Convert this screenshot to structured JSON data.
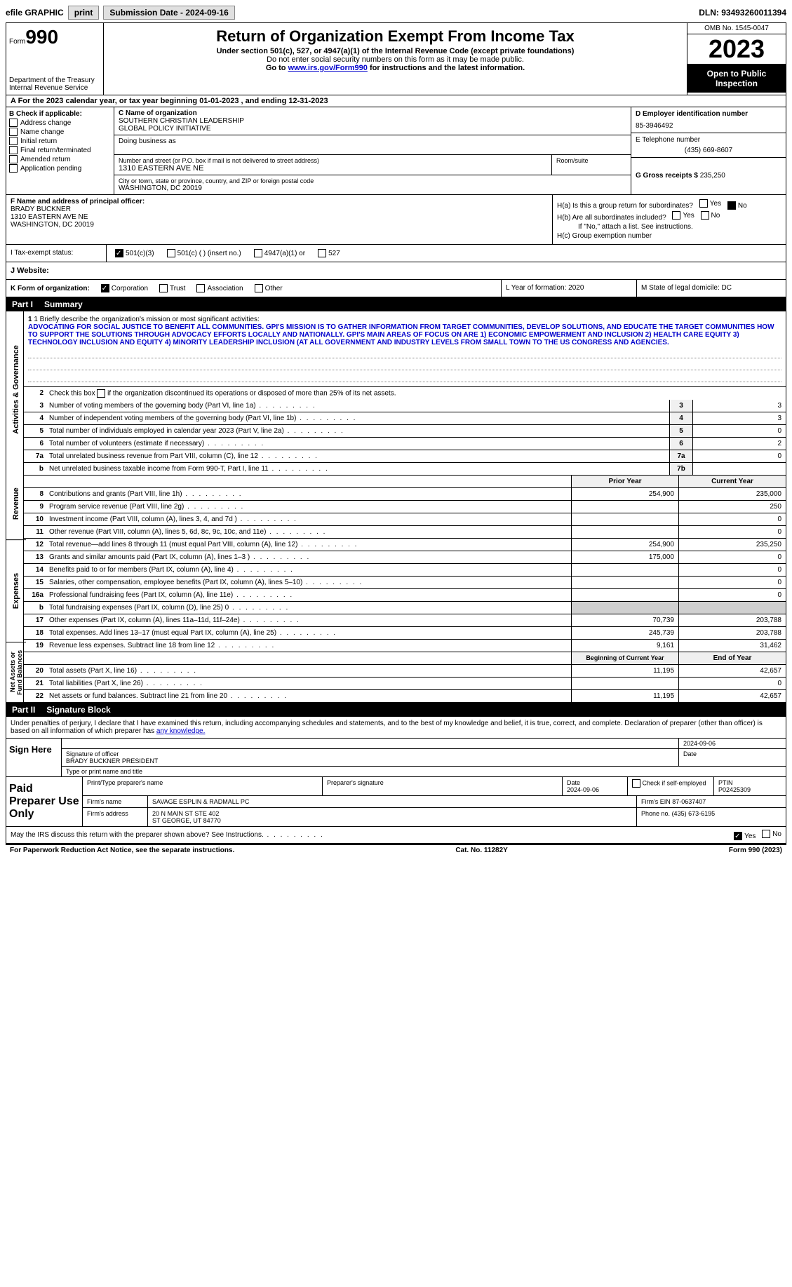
{
  "topbar": {
    "efile": "efile GRAPHIC",
    "print": "print",
    "submission_label": "Submission Date - 2024-09-16",
    "dln_label": "DLN: 93493260011394"
  },
  "header": {
    "form_prefix": "Form",
    "form_no": "990",
    "dept": "Department of the Treasury\nInternal Revenue Service",
    "title": "Return of Organization Exempt From Income Tax",
    "subtitle": "Under section 501(c), 527, or 4947(a)(1) of the Internal Revenue Code (except private foundations)",
    "ssn_note": "Do not enter social security numbers on this form as it may be made public.",
    "goto_prefix": "Go to ",
    "goto_link": "www.irs.gov/Form990",
    "goto_suffix": " for instructions and the latest information.",
    "omb": "OMB No. 1545-0047",
    "year": "2023",
    "open": "Open to Public Inspection"
  },
  "row_a": {
    "text": "A For the 2023 calendar year, or tax year beginning 01-01-2023   , and ending 12-31-2023"
  },
  "section_b": {
    "label": "B Check if applicable:",
    "opts": [
      "Address change",
      "Name change",
      "Initial return",
      "Final return/terminated",
      "Amended return",
      "Application pending"
    ],
    "c_name_label": "C Name of organization",
    "org_name": "SOUTHERN CHRISTIAN LEADERSHIP\nGLOBAL POLICY INITIATIVE",
    "dba_label": "Doing business as",
    "addr_label": "Number and street (or P.O. box if mail is not delivered to street address)",
    "addr": "1310 EASTERN AVE NE",
    "room_label": "Room/suite",
    "city_label": "City or town, state or province, country, and ZIP or foreign postal code",
    "city": "WASHINGTON, DC  20019",
    "d_label": "D Employer identification number",
    "ein": "85-3946492",
    "e_label": "E Telephone number",
    "phone": "(435) 669-8607",
    "g_label": "G Gross receipts $",
    "g_val": "235,250"
  },
  "section_f": {
    "label": "F Name and address of principal officer:",
    "name": "BRADY BUCKNER",
    "addr1": "1310 EASTERN AVE NE",
    "addr2": "WASHINGTON, DC  20019"
  },
  "section_h": {
    "ha": "H(a)  Is this a group return for subordinates?",
    "hb": "H(b)  Are all subordinates included?",
    "hb_note": "If \"No,\" attach a list. See instructions.",
    "hc": "H(c)  Group exemption number",
    "yes": "Yes",
    "no": "No"
  },
  "tax_status": {
    "i_label": "I  Tax-exempt status:",
    "opt1": "501(c)(3)",
    "opt2": "501(c) (  ) (insert no.)",
    "opt3": "4947(a)(1) or",
    "opt4": "527"
  },
  "j_label": "J  Website:",
  "k_row": {
    "label": "K Form of organization:",
    "opts": [
      "Corporation",
      "Trust",
      "Association",
      "Other"
    ],
    "l_label": "L Year of formation: 2020",
    "m_label": "M State of legal domicile: DC"
  },
  "part1": {
    "header": "Part I",
    "title": "Summary",
    "side_activities": "Activities & Governance",
    "side_revenue": "Revenue",
    "side_expenses": "Expenses",
    "side_net": "Net Assets or Fund Balances",
    "line1_label": "1  Briefly describe the organization's mission or most significant activities:",
    "mission": "ADVOCATING FOR SOCIAL JUSTICE TO BENEFIT ALL COMMUNITIES. GPI'S MISSION IS TO GATHER INFORMATION FROM TARGET COMMUNITIES, DEVELOP SOLUTIONS, AND EDUCATE THE TARGET COMMUNITIES HOW TO SUPPORT THE SOLUTIONS THROUGH ADVOCACY EFFORTS LOCALLY AND NATIONALLY. GPI'S MAIN AREAS OF FOCUS ON ARE 1) ECONOMIC EMPOWERMENT AND INCLUSION 2) HEALTH CARE EQUITY 3) TECHNOLOGY INCLUSION AND EQUITY 4) MINORITY LEADERSHIP INCLUSION (AT ALL GOVERNMENT AND INDUSTRY LEVELS FROM SMALL TOWN TO THE US CONGRESS AND AGENCIES.",
    "line2": "Check this box      if the organization discontinued its operations or disposed of more than 25% of its net assets.",
    "rows_ag": [
      {
        "n": "3",
        "desc": "Number of voting members of the governing body (Part VI, line 1a)",
        "box": "3",
        "val": "3"
      },
      {
        "n": "4",
        "desc": "Number of independent voting members of the governing body (Part VI, line 1b)",
        "box": "4",
        "val": "3"
      },
      {
        "n": "5",
        "desc": "Total number of individuals employed in calendar year 2023 (Part V, line 2a)",
        "box": "5",
        "val": "0"
      },
      {
        "n": "6",
        "desc": "Total number of volunteers (estimate if necessary)",
        "box": "6",
        "val": "2"
      },
      {
        "n": "7a",
        "desc": "Total unrelated business revenue from Part VIII, column (C), line 12",
        "box": "7a",
        "val": "0"
      },
      {
        "n": "b",
        "desc": "Net unrelated business taxable income from Form 990-T, Part I, line 11",
        "box": "7b",
        "val": ""
      }
    ],
    "fin_header": {
      "prior": "Prior Year",
      "curr": "Current Year"
    },
    "rows_rev": [
      {
        "n": "8",
        "desc": "Contributions and grants (Part VIII, line 1h)",
        "prior": "254,900",
        "curr": "235,000"
      },
      {
        "n": "9",
        "desc": "Program service revenue (Part VIII, line 2g)",
        "prior": "",
        "curr": "250"
      },
      {
        "n": "10",
        "desc": "Investment income (Part VIII, column (A), lines 3, 4, and 7d )",
        "prior": "",
        "curr": "0"
      },
      {
        "n": "11",
        "desc": "Other revenue (Part VIII, column (A), lines 5, 6d, 8c, 9c, 10c, and 11e)",
        "prior": "",
        "curr": "0"
      },
      {
        "n": "12",
        "desc": "Total revenue—add lines 8 through 11 (must equal Part VIII, column (A), line 12)",
        "prior": "254,900",
        "curr": "235,250"
      }
    ],
    "rows_exp": [
      {
        "n": "13",
        "desc": "Grants and similar amounts paid (Part IX, column (A), lines 1–3 )",
        "prior": "175,000",
        "curr": "0"
      },
      {
        "n": "14",
        "desc": "Benefits paid to or for members (Part IX, column (A), line 4)",
        "prior": "",
        "curr": "0"
      },
      {
        "n": "15",
        "desc": "Salaries, other compensation, employee benefits (Part IX, column (A), lines 5–10)",
        "prior": "",
        "curr": "0"
      },
      {
        "n": "16a",
        "desc": "Professional fundraising fees (Part IX, column (A), line 11e)",
        "prior": "",
        "curr": "0"
      },
      {
        "n": "b",
        "desc": "Total fundraising expenses (Part IX, column (D), line 25) 0",
        "prior": "grey",
        "curr": "grey"
      },
      {
        "n": "17",
        "desc": "Other expenses (Part IX, column (A), lines 11a–11d, 11f–24e)",
        "prior": "70,739",
        "curr": "203,788"
      },
      {
        "n": "18",
        "desc": "Total expenses. Add lines 13–17 (must equal Part IX, column (A), line 25)",
        "prior": "245,739",
        "curr": "203,788"
      },
      {
        "n": "19",
        "desc": "Revenue less expenses. Subtract line 18 from line 12",
        "prior": "9,161",
        "curr": "31,462"
      }
    ],
    "net_header": {
      "prior": "Beginning of Current Year",
      "curr": "End of Year"
    },
    "rows_net": [
      {
        "n": "20",
        "desc": "Total assets (Part X, line 16)",
        "prior": "11,195",
        "curr": "42,657"
      },
      {
        "n": "21",
        "desc": "Total liabilities (Part X, line 26)",
        "prior": "",
        "curr": "0"
      },
      {
        "n": "22",
        "desc": "Net assets or fund balances. Subtract line 21 from line 20",
        "prior": "11,195",
        "curr": "42,657"
      }
    ]
  },
  "part2": {
    "header": "Part II",
    "title": "Signature Block",
    "intro": "Under penalties of perjury, I declare that I have examined this return, including accompanying schedules and statements, and to the best of my knowledge and belief, it is true, correct, and complete. Declaration of preparer (other than officer) is based on all information of which preparer has ",
    "intro_link": "any knowledge.",
    "sign_here": "Sign Here",
    "sig_date": "2024-09-06",
    "sig_officer_lbl": "Signature of officer",
    "officer_name": "BRADY BUCKNER  PRESIDENT",
    "type_lbl": "Type or print name and title",
    "date_lbl": "Date",
    "paid_label": "Paid Preparer Use Only",
    "prep_name_lbl": "Print/Type preparer's name",
    "prep_sig_lbl": "Preparer's signature",
    "prep_date": "2024-09-06",
    "check_if": "Check        if self-employed",
    "ptin_lbl": "PTIN",
    "ptin": "P02425309",
    "firm_name_lbl": "Firm's name",
    "firm_name": "SAVAGE ESPLIN & RADMALL PC",
    "firm_ein_lbl": "Firm's EIN",
    "firm_ein": "87-0637407",
    "firm_addr_lbl": "Firm's address",
    "firm_addr1": "20 N MAIN ST STE 402",
    "firm_addr2": "ST GEORGE, UT  84770",
    "phone_lbl": "Phone no.",
    "phone": "(435) 673-6195",
    "discuss": "May the IRS discuss this return with the preparer shown above? See Instructions.",
    "yes": "Yes",
    "no": "No"
  },
  "footer": {
    "left": "For Paperwork Reduction Act Notice, see the separate instructions.",
    "center": "Cat. No. 11282Y",
    "right": "Form 990 (2023)"
  }
}
